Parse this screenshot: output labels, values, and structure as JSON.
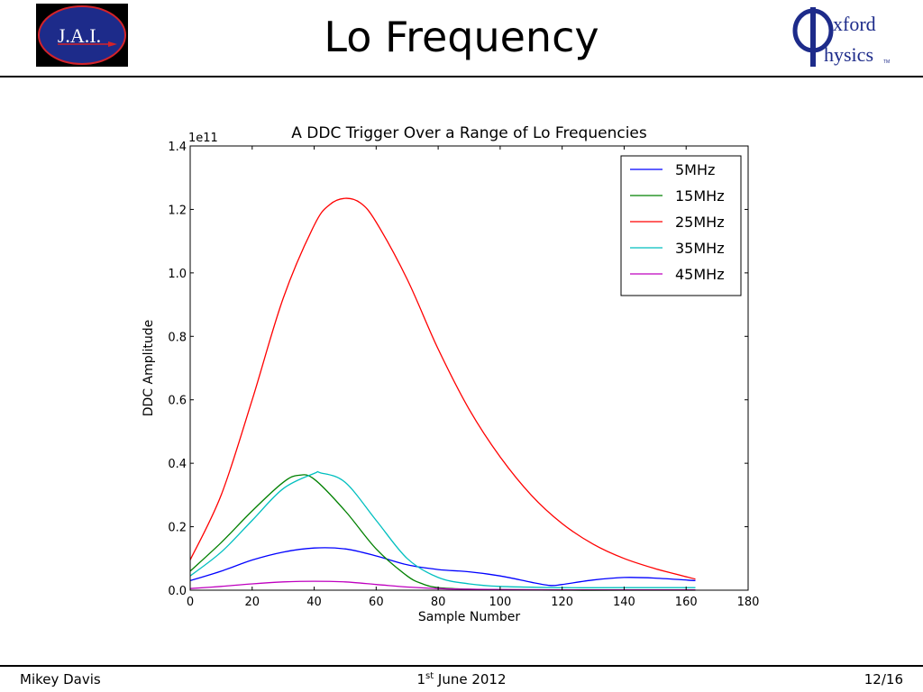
{
  "header": {
    "title": "Lo Frequency",
    "left_logo_text": "J.A.I.",
    "right_logo_text_1": "xford",
    "right_logo_text_2": "hysics",
    "right_logo_tm": "TM"
  },
  "footer": {
    "author": "Mikey Davis",
    "date_day": "1",
    "date_suffix": "st",
    "date_rest": " June 2012",
    "page": "12/16"
  },
  "chart_data": {
    "type": "line",
    "title": "A DDC Trigger Over a Range of Lo Frequencies",
    "xlabel": "Sample Number",
    "ylabel": "DDC Amplitude",
    "y_multiplier": "1e11",
    "xlim": [
      0,
      180
    ],
    "ylim": [
      0,
      1.4
    ],
    "xticks": [
      0,
      20,
      40,
      60,
      80,
      100,
      120,
      140,
      160,
      180
    ],
    "yticks": [
      0.0,
      0.2,
      0.4,
      0.6,
      0.8,
      1.0,
      1.2,
      1.4
    ],
    "ytick_labels": [
      "0.0",
      "0.2",
      "0.4",
      "0.6",
      "0.8",
      "1.0",
      "1.2",
      "1.4"
    ],
    "legend_position": "top-right",
    "grid": false,
    "series": [
      {
        "name": "5MHz",
        "color": "#0000ff",
        "x": [
          0,
          10,
          20,
          30,
          40,
          50,
          60,
          70,
          80,
          90,
          100,
          110,
          116,
          120,
          130,
          140,
          150,
          163
        ],
        "y": [
          0.03,
          0.06,
          0.095,
          0.12,
          0.133,
          0.13,
          0.108,
          0.08,
          0.065,
          0.058,
          0.045,
          0.025,
          0.015,
          0.018,
          0.032,
          0.04,
          0.038,
          0.03
        ]
      },
      {
        "name": "15MHz",
        "color": "#008000",
        "x": [
          0,
          10,
          20,
          30,
          35,
          40,
          50,
          60,
          70,
          75,
          80,
          90,
          100,
          120,
          140,
          163
        ],
        "y": [
          0.06,
          0.15,
          0.25,
          0.34,
          0.362,
          0.35,
          0.25,
          0.13,
          0.045,
          0.02,
          0.008,
          0.003,
          0.002,
          0.0,
          0.0,
          0.0
        ]
      },
      {
        "name": "25MHz",
        "color": "#ff0000",
        "x": [
          0,
          10,
          20,
          30,
          40,
          45,
          50,
          55,
          60,
          70,
          80,
          90,
          100,
          110,
          120,
          130,
          140,
          150,
          163
        ],
        "y": [
          0.095,
          0.3,
          0.6,
          0.92,
          1.15,
          1.215,
          1.235,
          1.22,
          1.16,
          0.98,
          0.76,
          0.57,
          0.42,
          0.3,
          0.21,
          0.145,
          0.1,
          0.068,
          0.035
        ]
      },
      {
        "name": "35MHz",
        "color": "#00bfbf",
        "x": [
          0,
          10,
          20,
          30,
          40,
          42,
          50,
          60,
          70,
          80,
          90,
          100,
          120,
          140,
          163
        ],
        "y": [
          0.045,
          0.12,
          0.22,
          0.32,
          0.368,
          0.37,
          0.34,
          0.22,
          0.1,
          0.04,
          0.02,
          0.012,
          0.008,
          0.008,
          0.008
        ]
      },
      {
        "name": "45MHz",
        "color": "#bf00bf",
        "x": [
          0,
          10,
          20,
          30,
          40,
          50,
          60,
          70,
          80,
          90,
          100,
          120,
          140,
          163
        ],
        "y": [
          0.005,
          0.012,
          0.02,
          0.026,
          0.028,
          0.026,
          0.018,
          0.01,
          0.005,
          0.003,
          0.002,
          0.001,
          0.001,
          0.001
        ]
      }
    ]
  }
}
